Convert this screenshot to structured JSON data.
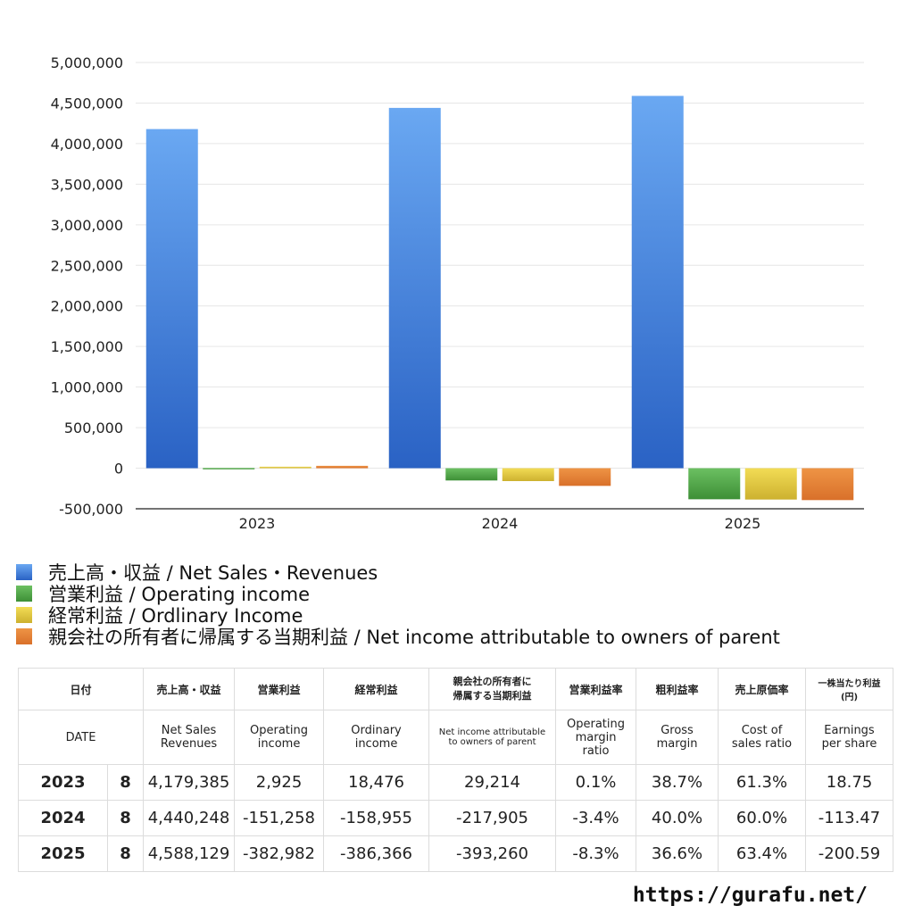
{
  "chart_data": {
    "type": "bar",
    "categories": [
      "2023",
      "2024",
      "2025"
    ],
    "ylim": [
      -500000,
      5000000
    ],
    "yticks": [
      5000000,
      4500000,
      4000000,
      3500000,
      3000000,
      2500000,
      2000000,
      1500000,
      1000000,
      500000,
      0,
      -500000
    ],
    "ytick_labels": [
      "5,000,000",
      "4,500,000",
      "4,000,000",
      "3,500,000",
      "3,000,000",
      "2,500,000",
      "2,000,000",
      "1,500,000",
      "1,000,000",
      "500,000",
      "0",
      "-500,000"
    ],
    "grid": true,
    "legend_position": "bottom",
    "series": [
      {
        "name": "売上高・収益 / Net Sales・Revenues",
        "color": "#3f7fd9",
        "color_top": "#6aa8f2",
        "color_bottom": "#2a62c4",
        "values": [
          4179385,
          4440248,
          4588129
        ]
      },
      {
        "name": "営業利益 / Operating income",
        "color": "#3f9a3a",
        "color_top": "#6cc062",
        "color_bottom": "#3d8f36",
        "values": [
          2925,
          -151258,
          -382982
        ]
      },
      {
        "name": "経常利益 / Ordlinary Income",
        "color": "#e0c63a",
        "color_top": "#f2dc55",
        "color_bottom": "#cdb12f",
        "values": [
          18476,
          -158955,
          -386366
        ]
      },
      {
        "name": "親会社の所有者に帰属する当期利益 / Net income attributable to owners of parent",
        "color": "#e07a2e",
        "color_top": "#ee9445",
        "color_bottom": "#d9702a",
        "values": [
          29214,
          -217905,
          -393260
        ]
      }
    ]
  },
  "table": {
    "header_jp": [
      "日付",
      "売上高・収益",
      "営業利益",
      "経常利益",
      "親会社の所有者に",
      "帰属する当期利益",
      "営業利益率",
      "粗利益率",
      "売上原価率",
      "一株当たり利益",
      "(円)"
    ],
    "header_en": {
      "date": "DATE",
      "net_sales_1": "Net Sales",
      "net_sales_2": "Revenues",
      "op_1": "Operating",
      "op_2": "income",
      "ord_1": "Ordinary",
      "ord_2": "income",
      "net_income_1": "Net income attributable",
      "net_income_2": "to owners of parent",
      "opm_1": "Operating",
      "opm_2": "margin",
      "opm_3": "ratio",
      "gm_1": "Gross",
      "gm_2": "margin",
      "cost_1": "Cost of",
      "cost_2": "sales ratio",
      "eps_1": "Earnings",
      "eps_2": "per share"
    },
    "rows": [
      {
        "year": "2023",
        "month": "8",
        "sales": "4,179,385",
        "operating": "2,925",
        "ordinary": "18,476",
        "net_income": "29,214",
        "op_margin": "0.1%",
        "gross_margin": "38.7%",
        "cost_ratio": "61.3%",
        "eps": "18.75"
      },
      {
        "year": "2024",
        "month": "8",
        "sales": "4,440,248",
        "operating": "-151,258",
        "ordinary": "-158,955",
        "net_income": "-217,905",
        "op_margin": "-3.4%",
        "gross_margin": "40.0%",
        "cost_ratio": "60.0%",
        "eps": "-113.47"
      },
      {
        "year": "2025",
        "month": "8",
        "sales": "4,588,129",
        "operating": "-382,982",
        "ordinary": "-386,366",
        "net_income": "-393,260",
        "op_margin": "-8.3%",
        "gross_margin": "36.6%",
        "cost_ratio": "63.4%",
        "eps": "-200.59"
      }
    ]
  },
  "footer": {
    "site": "https://gurafu.net/"
  },
  "colors": {
    "negative": "#cc3b22",
    "grid": "#e6e6e6"
  }
}
